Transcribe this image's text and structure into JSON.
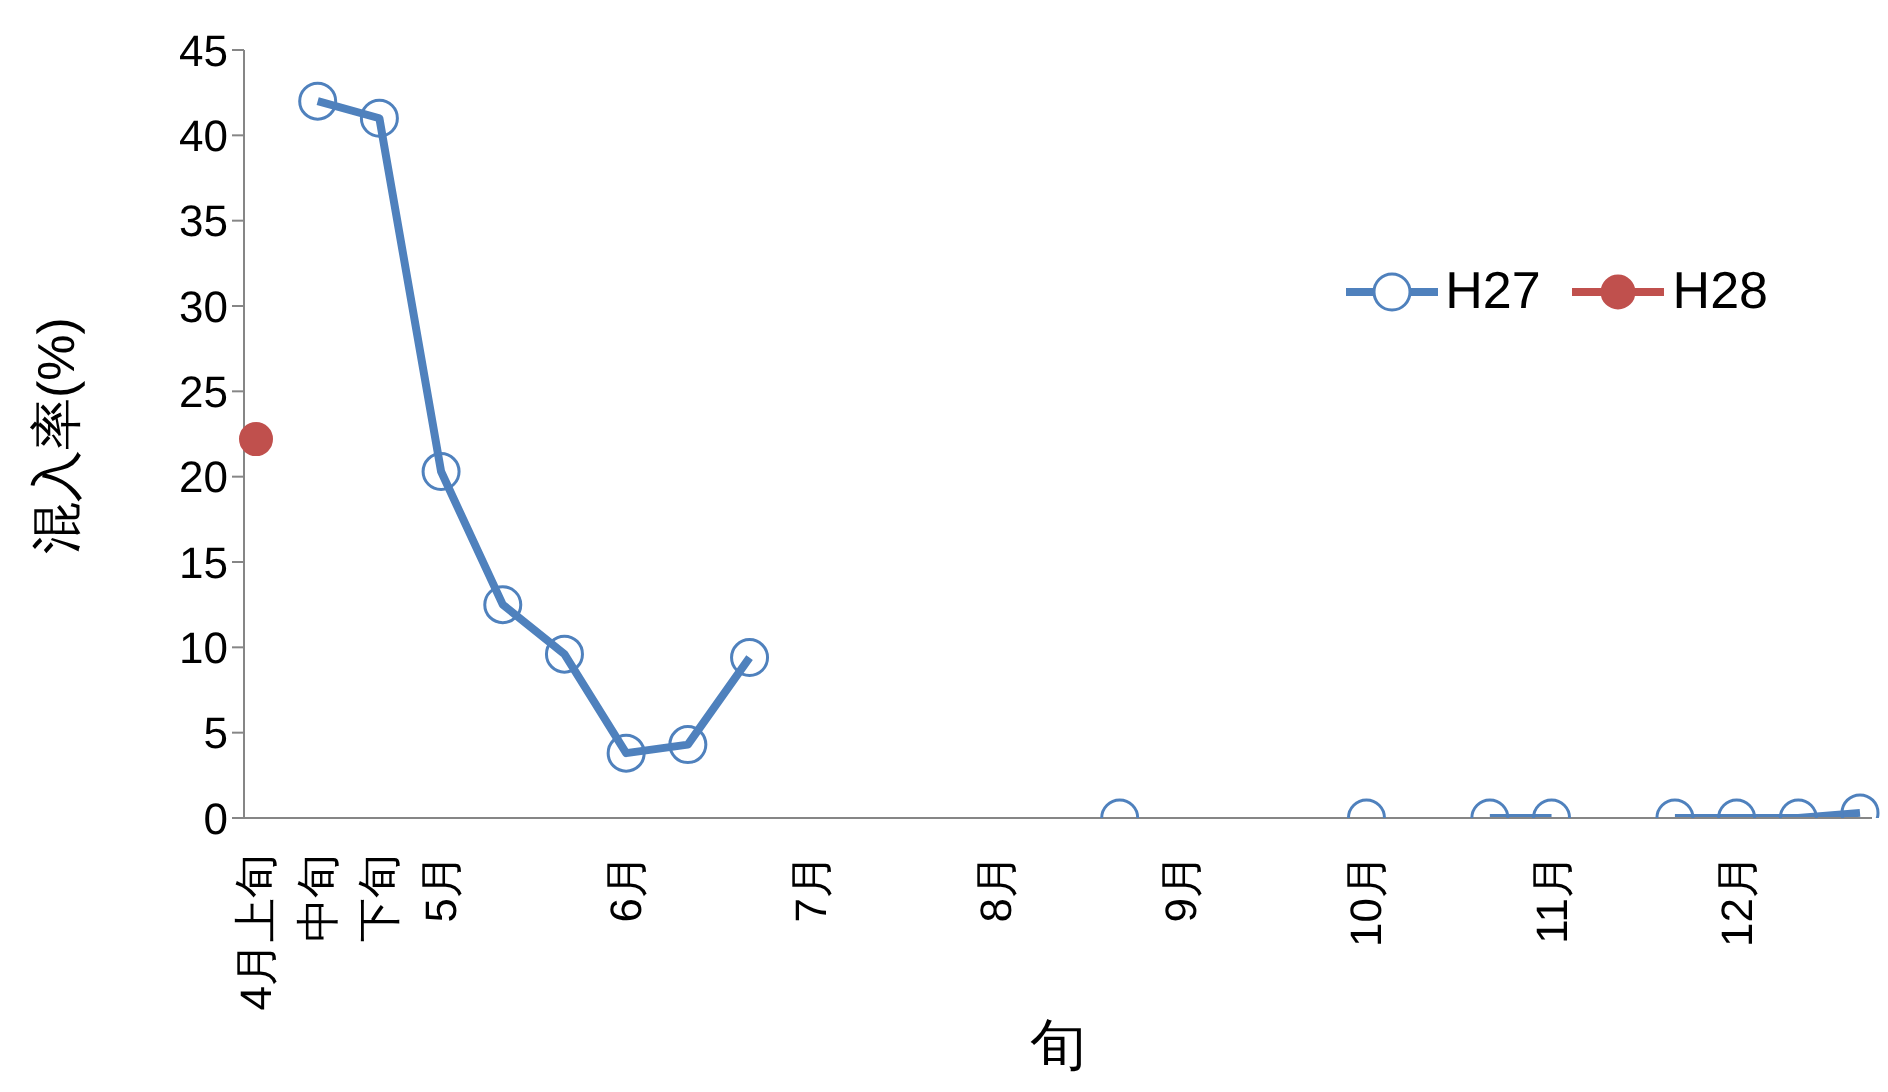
{
  "chart_data": {
    "type": "line",
    "xlabel": "旬",
    "ylabel": "混入率(%)",
    "categories": [
      "4月上旬",
      "中旬",
      "下旬",
      "5月",
      null,
      null,
      "6月",
      null,
      null,
      "7月",
      null,
      null,
      "8月",
      null,
      null,
      "9月",
      null,
      null,
      "10月",
      null,
      null,
      "11月",
      null,
      null,
      "12月",
      null,
      null
    ],
    "series": [
      {
        "name": "H27",
        "color": "#4f81bd",
        "values": [
          null,
          42,
          41,
          20.3,
          12.5,
          9.6,
          3.8,
          4.3,
          9.4,
          null,
          null,
          null,
          null,
          null,
          0,
          null,
          null,
          null,
          0,
          null,
          0,
          0,
          null,
          0,
          0,
          0,
          0.3
        ]
      },
      {
        "name": "H28",
        "color": "#c0504d",
        "values": [
          22.2,
          null,
          null,
          null,
          null,
          null,
          null,
          null,
          null,
          null,
          null,
          null,
          null,
          null,
          null,
          null,
          null,
          null,
          null,
          null,
          null,
          null,
          null,
          null,
          null,
          null,
          null
        ]
      }
    ],
    "ylim": [
      0,
      45
    ],
    "yticks": [
      0,
      5,
      10,
      15,
      20,
      25,
      30,
      35,
      40,
      45
    ],
    "grid": false,
    "legend": "right",
    "marker": "circle",
    "line_style": "solid"
  }
}
